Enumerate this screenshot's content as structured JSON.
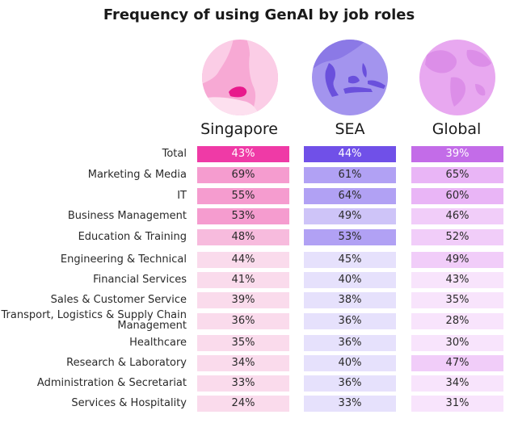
{
  "chart_data": {
    "type": "table",
    "title": "Frequency of using GenAI by job roles",
    "columns": [
      "Singapore",
      "SEA",
      "Global"
    ],
    "rows": [
      {
        "label": "Total",
        "values": [
          "43%",
          "44%",
          "39%"
        ]
      },
      {
        "label": "Marketing & Media",
        "values": [
          "69%",
          "61%",
          "65%"
        ]
      },
      {
        "label": "IT",
        "values": [
          "55%",
          "64%",
          "60%"
        ]
      },
      {
        "label": "Business Management",
        "values": [
          "53%",
          "49%",
          "46%"
        ]
      },
      {
        "label": "Education & Training",
        "values": [
          "48%",
          "53%",
          "52%"
        ]
      },
      {
        "label": "Engineering & Technical",
        "values": [
          "44%",
          "45%",
          "49%"
        ]
      },
      {
        "label": "Financial Services",
        "values": [
          "41%",
          "40%",
          "43%"
        ]
      },
      {
        "label": "Sales & Customer Service",
        "values": [
          "39%",
          "38%",
          "35%"
        ]
      },
      {
        "label": "Transport, Logistics & Supply Chain Management",
        "label_lines": [
          "Transport, Logistics & Supply Chain",
          "Management"
        ],
        "values": [
          "36%",
          "36%",
          "28%"
        ]
      },
      {
        "label": "Healthcare",
        "values": [
          "35%",
          "36%",
          "30%"
        ]
      },
      {
        "label": "Research & Laboratory",
        "values": [
          "34%",
          "40%",
          "47%"
        ]
      },
      {
        "label": "Administration & Secretariat",
        "values": [
          "33%",
          "36%",
          "34%"
        ]
      },
      {
        "label": "Services & Hospitality",
        "values": [
          "24%",
          "33%",
          "31%"
        ]
      }
    ],
    "colors": {
      "Singapore": {
        "total": "#ef3aa6",
        "high": "#f59ccf",
        "mid": "#f7bbdd",
        "low": "#fadbec"
      },
      "SEA": {
        "total": "#7050e8",
        "high": "#b1a1f4",
        "mid": "#cec4f8",
        "low": "#e6e1fc"
      },
      "Global": {
        "total": "#c36ce8",
        "high": "#e9b5f6",
        "mid": "#f1cdf9",
        "low": "#f8e4fc"
      }
    }
  }
}
